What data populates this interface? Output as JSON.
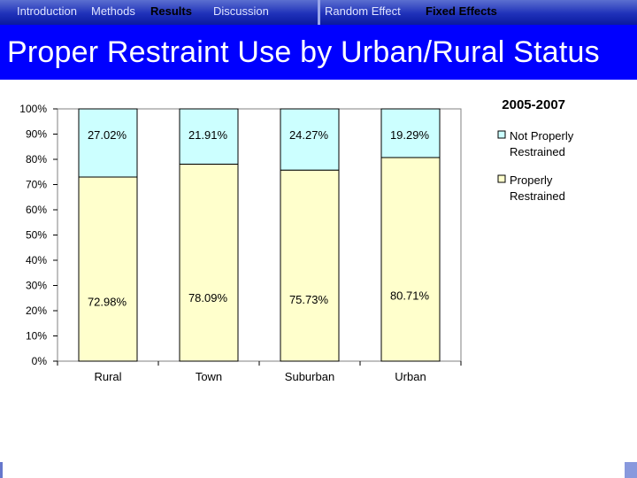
{
  "nav": {
    "left": [
      {
        "label": "Introduction",
        "active": false
      },
      {
        "label": "Methods",
        "active": false
      },
      {
        "label": "Results",
        "active": true
      },
      {
        "label": "Discussion",
        "active": false
      }
    ],
    "right": [
      {
        "label": "Random Effect",
        "active": false
      },
      {
        "label": "Fixed Effects",
        "active": true
      }
    ]
  },
  "header": {
    "title": "Proper Restraint Use by Urban/Rural Status"
  },
  "colors": {
    "nav_bg": "#0000ff",
    "properly": "#ffffcc",
    "not_properly": "#ccffff",
    "bar_border": "#000000"
  },
  "chart_data": {
    "type": "bar",
    "stacked": true,
    "title": "2005-2007",
    "categories": [
      "Rural",
      "Town",
      "Suburban",
      "Urban"
    ],
    "series": [
      {
        "name": "Properly Restrained",
        "values": [
          72.98,
          78.09,
          75.73,
          80.71
        ],
        "labels": [
          "72.98%",
          "78.09%",
          "75.73%",
          "80.71%"
        ],
        "color": "#ffffcc"
      },
      {
        "name": "Not Properly Restrained",
        "values": [
          27.02,
          21.91,
          24.27,
          19.29
        ],
        "labels": [
          "27.02%",
          "21.91%",
          "24.27%",
          "19.29%"
        ],
        "color": "#ccffff"
      }
    ],
    "yticks": [
      "0%",
      "10%",
      "20%",
      "30%",
      "40%",
      "50%",
      "60%",
      "70%",
      "80%",
      "90%",
      "100%"
    ],
    "ylim": [
      0,
      100
    ],
    "xlabel": "",
    "ylabel": "",
    "legend": {
      "position": "right",
      "items": [
        {
          "lines": [
            "Not Properly",
            "Restrained"
          ]
        },
        {
          "lines": [
            "Properly",
            "Restrained"
          ]
        }
      ]
    }
  }
}
